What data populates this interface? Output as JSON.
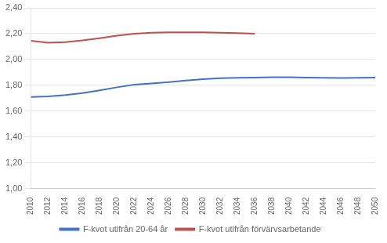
{
  "chart_data": {
    "type": "line",
    "x": [
      2010,
      2012,
      2014,
      2016,
      2018,
      2020,
      2022,
      2024,
      2026,
      2028,
      2030,
      2032,
      2034,
      2036,
      2038,
      2040,
      2042,
      2044,
      2046,
      2048,
      2050
    ],
    "series": [
      {
        "name": "F-kvot utifrån 20-64 år",
        "color": "#4472C4",
        "values": [
          1.71,
          1.715,
          1.725,
          1.74,
          1.762,
          1.785,
          1.805,
          1.815,
          1.825,
          1.838,
          1.848,
          1.855,
          1.858,
          1.86,
          1.863,
          1.863,
          1.86,
          1.858,
          1.857,
          1.858,
          1.86
        ]
      },
      {
        "name": "F-kvot utifrån förvärvsarbetande",
        "color": "#C0504D",
        "values": [
          2.145,
          2.13,
          2.135,
          2.148,
          2.165,
          2.185,
          2.2,
          2.208,
          2.21,
          2.21,
          2.21,
          2.207,
          2.205,
          2.2,
          null,
          null,
          null,
          null,
          null,
          null,
          null
        ]
      }
    ],
    "xlim": [
      2010,
      2050
    ],
    "xticks": [
      2010,
      2012,
      2014,
      2016,
      2018,
      2020,
      2022,
      2024,
      2026,
      2028,
      2030,
      2032,
      2034,
      2036,
      2038,
      2040,
      2042,
      2044,
      2046,
      2048,
      2050
    ],
    "ylim": [
      1.0,
      2.4
    ],
    "yticks": [
      {
        "value": 1.0,
        "label": "1,00"
      },
      {
        "value": 1.2,
        "label": "1,20"
      },
      {
        "value": 1.4,
        "label": "1,40"
      },
      {
        "value": 1.6,
        "label": "1,60"
      },
      {
        "value": 1.8,
        "label": "1,80"
      },
      {
        "value": 2.0,
        "label": "2,00"
      },
      {
        "value": 2.2,
        "label": "2,20"
      },
      {
        "value": 2.4,
        "label": "2,40"
      }
    ],
    "grid": "y",
    "legend": "bottom"
  }
}
